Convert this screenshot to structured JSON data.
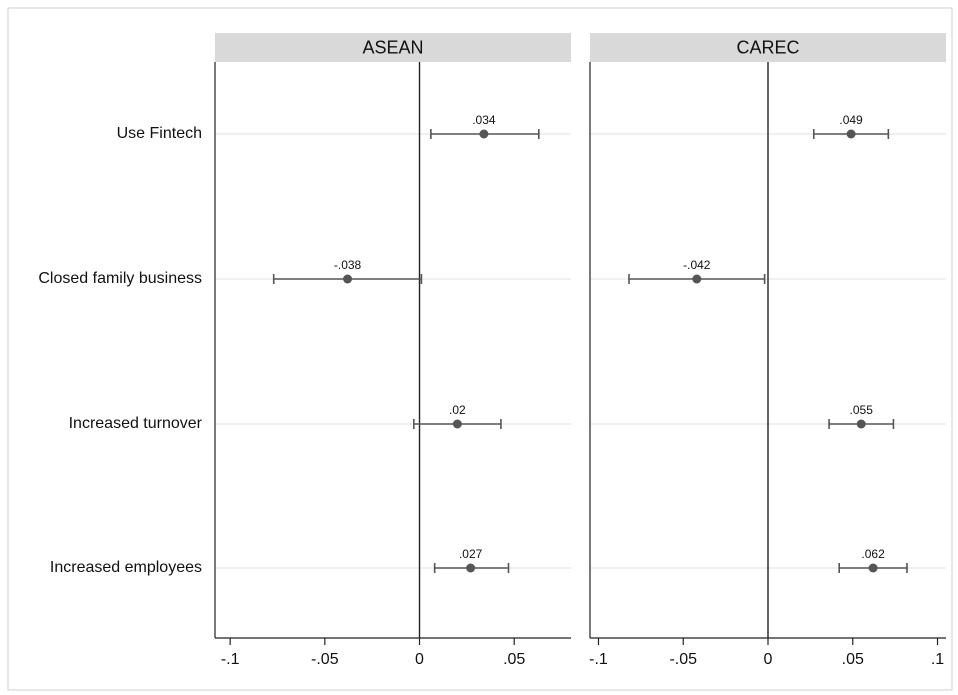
{
  "chart_data": {
    "type": "scatter",
    "subtype": "coefficient-plot-with-confidence-intervals",
    "categories": [
      "Use Fintech",
      "Closed family business",
      "Increased turnover",
      "Increased employees"
    ],
    "panels": [
      {
        "title": "ASEAN",
        "xlim": [
          -0.108,
          0.08
        ],
        "xticks": [
          -0.1,
          -0.05,
          0,
          0.05
        ],
        "xtick_labels": [
          "-.1",
          "-.05",
          "0",
          ".05"
        ],
        "points": [
          {
            "category": "Use Fintech",
            "estimate": 0.034,
            "lower": 0.006,
            "upper": 0.063,
            "label": ".034"
          },
          {
            "category": "Closed family business",
            "estimate": -0.038,
            "lower": -0.077,
            "upper": 0.001,
            "label": "-.038"
          },
          {
            "category": "Increased turnover",
            "estimate": 0.02,
            "lower": -0.003,
            "upper": 0.043,
            "label": ".02"
          },
          {
            "category": "Increased employees",
            "estimate": 0.027,
            "lower": 0.008,
            "upper": 0.047,
            "label": ".027"
          }
        ]
      },
      {
        "title": "CAREC",
        "xlim": [
          -0.105,
          0.105
        ],
        "xticks": [
          -0.1,
          -0.05,
          0,
          0.05,
          0.1
        ],
        "xtick_labels": [
          "-.1",
          "-.05",
          "0",
          ".05",
          ".1"
        ],
        "points": [
          {
            "category": "Use Fintech",
            "estimate": 0.049,
            "lower": 0.027,
            "upper": 0.071,
            "label": ".049"
          },
          {
            "category": "Closed family business",
            "estimate": -0.042,
            "lower": -0.082,
            "upper": -0.002,
            "label": "-.042"
          },
          {
            "category": "Increased turnover",
            "estimate": 0.055,
            "lower": 0.036,
            "upper": 0.074,
            "label": ".055"
          },
          {
            "category": "Increased employees",
            "estimate": 0.062,
            "lower": 0.042,
            "upper": 0.082,
            "label": ".062"
          }
        ]
      }
    ],
    "reference_line": 0,
    "grid": "horizontal",
    "legend": "none",
    "colors": {
      "panel_header": "#d9d9d9",
      "marker": "#555555",
      "ci_line": "#555555",
      "grid": "#e6e6e6",
      "axis": "#222222",
      "reference": "#222222"
    }
  }
}
